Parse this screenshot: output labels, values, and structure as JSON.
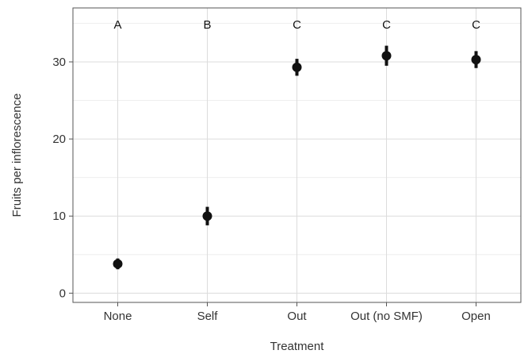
{
  "chart_data": {
    "type": "scatter",
    "xlabel": "Treatment",
    "ylabel": "Fruits per inflorescence",
    "categories": [
      "None",
      "Self",
      "Out",
      "Out (no SMF)",
      "Open"
    ],
    "values": [
      3.8,
      10.0,
      29.3,
      30.8,
      30.3
    ],
    "error_low": [
      3.1,
      8.8,
      28.2,
      29.5,
      29.2
    ],
    "error_high": [
      4.5,
      11.2,
      30.4,
      32.1,
      31.4
    ],
    "significance_letters": [
      "A",
      "B",
      "C",
      "C",
      "C"
    ],
    "ylim": [
      -1.2,
      37
    ],
    "y_ticks": [
      0,
      10,
      20,
      30
    ],
    "y_tick_labels": [
      "0",
      "10",
      "20",
      "30"
    ],
    "grid": true,
    "legend": "none"
  }
}
